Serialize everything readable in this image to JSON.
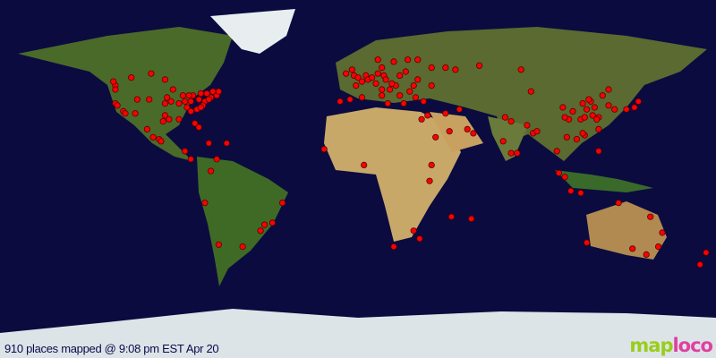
{
  "caption": "910 places mapped @ 9:08 pm EST Apr 20",
  "logo": {
    "part1": "map",
    "part2": "loco"
  },
  "projection": "equirectangular",
  "colors": {
    "ocean": "#0b0b40",
    "marker": "#ff0000",
    "marker_outline": "#550000"
  },
  "markers": [
    [
      -122,
      47
    ],
    [
      -122,
      45
    ],
    [
      -122,
      38
    ],
    [
      -121,
      37
    ],
    [
      -118,
      34
    ],
    [
      -117,
      33
    ],
    [
      -112,
      33
    ],
    [
      -111,
      40
    ],
    [
      -105,
      40
    ],
    [
      -97,
      32
    ],
    [
      -95,
      30
    ],
    [
      -98,
      29
    ],
    [
      -90,
      30
    ],
    [
      -84,
      34
    ],
    [
      -82,
      28
    ],
    [
      -80,
      26
    ],
    [
      -81,
      35
    ],
    [
      -77,
      39
    ],
    [
      -74,
      41
    ],
    [
      -71,
      42
    ],
    [
      -73,
      44
    ],
    [
      -76,
      43
    ],
    [
      -79,
      43
    ],
    [
      -83,
      42
    ],
    [
      -88,
      42
    ],
    [
      -87,
      39
    ],
    [
      -90,
      38
    ],
    [
      -93,
      45
    ],
    [
      -94,
      39
    ],
    [
      -86,
      36
    ],
    [
      -80,
      40
    ],
    [
      -75,
      40
    ],
    [
      -78,
      37
    ],
    [
      -84,
      39
    ],
    [
      -97,
      38
    ],
    [
      -96,
      41
    ],
    [
      -79,
      36
    ],
    [
      -85,
      42
    ],
    [
      -70,
      44
    ],
    [
      -104,
      53
    ],
    [
      -114,
      51
    ],
    [
      -123,
      49
    ],
    [
      -97,
      50
    ],
    [
      -100,
      20
    ],
    [
      -99,
      19
    ],
    [
      -103,
      21
    ],
    [
      -106,
      25
    ],
    [
      -87,
      14
    ],
    [
      -84,
      10
    ],
    [
      -75,
      18
    ],
    [
      -66,
      18
    ],
    [
      -71,
      10
    ],
    [
      -74,
      4
    ],
    [
      -77,
      -12
    ],
    [
      -70,
      -33
    ],
    [
      -58,
      -34
    ],
    [
      -47,
      -23
    ],
    [
      -43,
      -22
    ],
    [
      -49,
      -26
    ],
    [
      -38,
      -12
    ],
    [
      -9,
      39
    ],
    [
      -4,
      40
    ],
    [
      2,
      41
    ],
    [
      -1,
      47
    ],
    [
      2,
      49
    ],
    [
      -2,
      52
    ],
    [
      0,
      51
    ],
    [
      -3,
      55
    ],
    [
      -6,
      53
    ],
    [
      4,
      52
    ],
    [
      5,
      50
    ],
    [
      7,
      51
    ],
    [
      9,
      48
    ],
    [
      13,
      52
    ],
    [
      10,
      53
    ],
    [
      12,
      56
    ],
    [
      18,
      59
    ],
    [
      10,
      60
    ],
    [
      25,
      60
    ],
    [
      30,
      60
    ],
    [
      24,
      54
    ],
    [
      21,
      52
    ],
    [
      19,
      47
    ],
    [
      17,
      48
    ],
    [
      14,
      50
    ],
    [
      16,
      45
    ],
    [
      12,
      45
    ],
    [
      12,
      42
    ],
    [
      15,
      38
    ],
    [
      21,
      42
    ],
    [
      23,
      38
    ],
    [
      26,
      44
    ],
    [
      28,
      47
    ],
    [
      30,
      50
    ],
    [
      37,
      56
    ],
    [
      44,
      56
    ],
    [
      49,
      55
    ],
    [
      61,
      57
    ],
    [
      82,
      55
    ],
    [
      37,
      47
    ],
    [
      29,
      41
    ],
    [
      33,
      39
    ],
    [
      35,
      32
    ],
    [
      44,
      33
    ],
    [
      51,
      35
    ],
    [
      46,
      24
    ],
    [
      39,
      21
    ],
    [
      55,
      25
    ],
    [
      58,
      23
    ],
    [
      74,
      31
    ],
    [
      77,
      29
    ],
    [
      73,
      19
    ],
    [
      77,
      13
    ],
    [
      80,
      13
    ],
    [
      88,
      23
    ],
    [
      85,
      27
    ],
    [
      90,
      24
    ],
    [
      100,
      14
    ],
    [
      105,
      21
    ],
    [
      101,
      3
    ],
    [
      104,
      1
    ],
    [
      107,
      -6
    ],
    [
      112,
      -7
    ],
    [
      121,
      14
    ],
    [
      121,
      25
    ],
    [
      114,
      22
    ],
    [
      113,
      23
    ],
    [
      110,
      20
    ],
    [
      106,
      30
    ],
    [
      104,
      31
    ],
    [
      108,
      34
    ],
    [
      112,
      30
    ],
    [
      114,
      31
    ],
    [
      118,
      32
    ],
    [
      121,
      31
    ],
    [
      120,
      30
    ],
    [
      117,
      39
    ],
    [
      116,
      40
    ],
    [
      123,
      42
    ],
    [
      126,
      45
    ],
    [
      113,
      38
    ],
    [
      115,
      35
    ],
    [
      119,
      36
    ],
    [
      126,
      37
    ],
    [
      129,
      35
    ],
    [
      135,
      35
    ],
    [
      139,
      36
    ],
    [
      141,
      39
    ],
    [
      87,
      44
    ],
    [
      103,
      36
    ],
    [
      -17,
      15
    ],
    [
      3,
      7
    ],
    [
      32,
      30
    ],
    [
      36,
      -1
    ],
    [
      37,
      7
    ],
    [
      28,
      -26
    ],
    [
      18,
      -34
    ],
    [
      31,
      -30
    ],
    [
      47,
      -19
    ],
    [
      57,
      -20
    ],
    [
      115,
      -32
    ],
    [
      138,
      -35
    ],
    [
      145,
      -38
    ],
    [
      151,
      -34
    ],
    [
      153,
      -27
    ],
    [
      147,
      -19
    ],
    [
      131,
      -12
    ],
    [
      175,
      -37
    ],
    [
      172,
      -43
    ]
  ]
}
